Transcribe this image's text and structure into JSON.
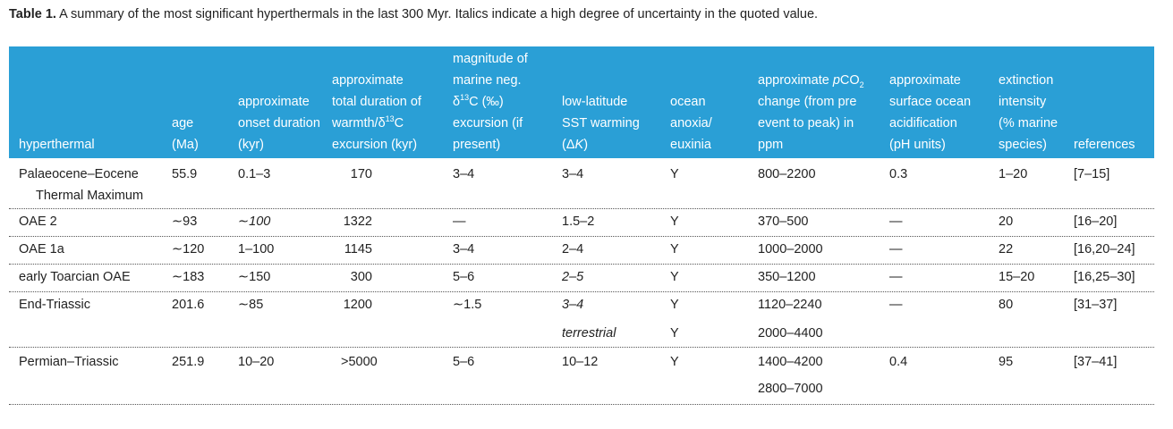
{
  "caption": {
    "label": "Table 1.",
    "text": "A summary of the most significant hyperthermals in the last 300 Myr. Italics indicate a high degree of uncertainty in the quoted value."
  },
  "columns": {
    "hyperthermal": [
      "hyperthermal"
    ],
    "age": [
      "age",
      "(Ma)"
    ],
    "onset": [
      "approximate",
      "onset duration",
      "(kyr)"
    ],
    "duration": [
      "approximate",
      "total duration of",
      "warmth/δ13C",
      "excursion (kyr)"
    ],
    "magnitude": [
      "magnitude of",
      "marine neg.",
      "δ13C (‰)",
      "excursion (if",
      "present)"
    ],
    "sst": [
      "low-latitude",
      "SST warming",
      "(ΔK)"
    ],
    "anoxia": [
      "ocean",
      "anoxia/",
      "euxinia"
    ],
    "pco2": [
      "approximate pCO2",
      "change (from pre",
      "event to peak) in",
      "ppm"
    ],
    "acid": [
      "approximate",
      "surface ocean",
      "acidification",
      "(pH units)"
    ],
    "extinction": [
      "extinction",
      "intensity",
      "(% marine",
      "species)"
    ],
    "refs": [
      "references"
    ]
  },
  "rows": [
    {
      "hyperthermal": "Palaeocene–Eocene",
      "hyperthermal2": "Thermal Maximum",
      "age": "55.9",
      "onset": "0.1–3",
      "duration": "170",
      "magnitude": "3–4",
      "sst": "3–4",
      "anoxia": "Y",
      "pco2": "800–2200",
      "acid": "0.3",
      "extinction": "1–20",
      "refs": "[7–15]"
    },
    {
      "hyperthermal": "OAE 2",
      "age": "∼93",
      "onset": "∼100",
      "duration": "1322",
      "magnitude": "—",
      "sst": "1.5–2",
      "anoxia": "Y",
      "pco2": "370–500",
      "acid": "—",
      "extinction": "20",
      "refs": "[16–20]"
    },
    {
      "hyperthermal": "OAE 1a",
      "age": "∼120",
      "onset": "1–100",
      "duration": "1145",
      "magnitude": "3–4",
      "sst": "2–4",
      "anoxia": "Y",
      "pco2": "1000–2000",
      "acid": "—",
      "extinction": "22",
      "refs": "[16,20–24]"
    },
    {
      "hyperthermal": "early Toarcian OAE",
      "age": "∼183",
      "onset": "∼150",
      "duration": "300",
      "magnitude": "5–6",
      "sst": "2–5",
      "anoxia": "Y",
      "pco2": "350–1200",
      "acid": "—",
      "extinction": "15–20",
      "refs": "[16,25–30]"
    },
    {
      "hyperthermal": "End-Triassic",
      "age": "201.6",
      "onset": "∼85",
      "duration": "1200",
      "magnitude": "∼1.5",
      "sst": "3–4",
      "sst2": "terrestrial",
      "anoxia": "Y",
      "anoxia2": "Y",
      "pco2": "1120–2240",
      "pco2_2": "2000–4400",
      "acid": "—",
      "extinction": "80",
      "refs": "[31–37]"
    },
    {
      "hyperthermal": "Permian–Triassic",
      "age": "251.9",
      "onset": "10–20",
      "duration": ">5000",
      "magnitude": "5–6",
      "sst": "10–12",
      "anoxia": "Y",
      "pco2": "1400–4200",
      "pco2_2": "2800–7000",
      "acid": "0.4",
      "extinction": "95",
      "refs": "[37–41]"
    }
  ],
  "colors": {
    "header_bg": "#2a9fd6",
    "header_text": "#ffffff",
    "separator": "#555555"
  }
}
